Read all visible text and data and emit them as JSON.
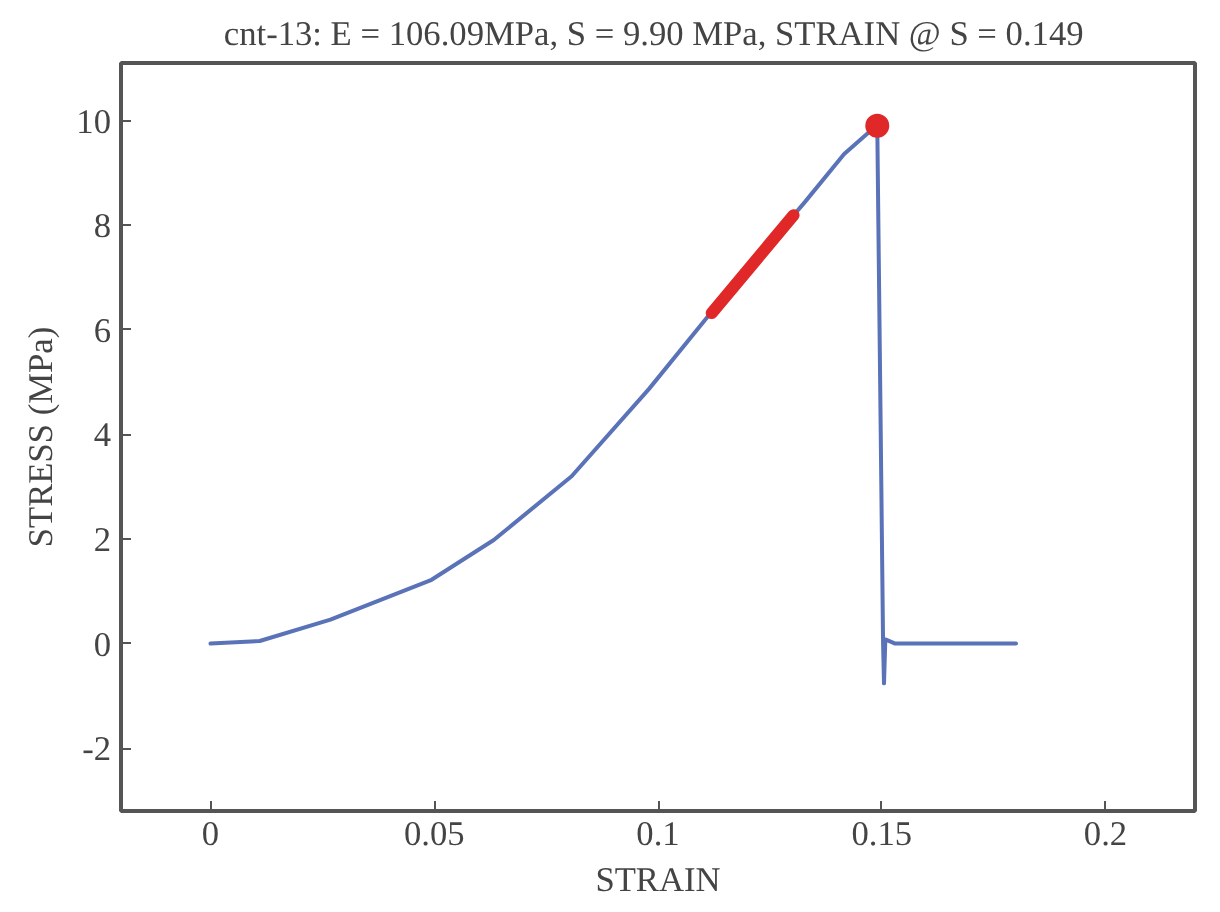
{
  "chart_data": {
    "type": "line",
    "title": "cnt-13: E  = 106.09MPa, S = 9.90 MPa, STRAIN @ S = 0.149",
    "xlabel": "STRAIN",
    "ylabel": "STRESS (MPa)",
    "xlim": [
      -0.02,
      0.22
    ],
    "ylim": [
      -3.2,
      11.1
    ],
    "xticks": [
      0,
      0.05,
      0.1,
      0.15,
      0.2
    ],
    "yticks": [
      -2,
      0,
      2,
      4,
      6,
      8,
      10
    ],
    "grid": false,
    "marker": "none",
    "line_style": "solid",
    "series": [
      {
        "color": "#5a72b8",
        "x": [
          0,
          0.011,
          0.0268,
          0.0494,
          0.0633,
          0.0807,
          0.098,
          0.111,
          0.112,
          0.1303,
          0.1329,
          0.1416,
          0.1477,
          0.149,
          0.1503,
          0.1505,
          0.1508,
          0.153,
          0.18
        ],
        "values": [
          0,
          0.05,
          0.46,
          1.22,
          1.98,
          3.2,
          4.87,
          6.24,
          6.32,
          8.19,
          8.45,
          9.36,
          9.82,
          9.9,
          0,
          -0.76,
          0.08,
          0,
          0
        ]
      },
      {
        "color": "#e02828",
        "x": [
          0.112,
          0.1303
        ],
        "values": [
          6.32,
          8.19
        ]
      },
      {
        "type": "scatter",
        "color": "#e02828",
        "marker": "circle",
        "x": [
          0.149
        ],
        "values": [
          9.9
        ]
      }
    ]
  }
}
